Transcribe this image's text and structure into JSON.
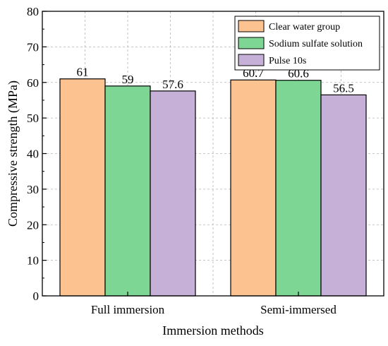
{
  "chart_data": {
    "type": "bar",
    "title": "",
    "xlabel": "Immersion methods",
    "ylabel": "Compressive strength (MPa)",
    "ylim": [
      0,
      80
    ],
    "yticks": [
      0,
      10,
      20,
      30,
      40,
      50,
      60,
      70,
      80
    ],
    "categories": [
      "Full immersion",
      "Semi-immersed"
    ],
    "series": [
      {
        "name": "Clear water group",
        "values": [
          61,
          60.7
        ],
        "value_labels": [
          "61",
          "60.7"
        ],
        "color": "#fcc28f"
      },
      {
        "name": "Sodium sulfate solution",
        "values": [
          59,
          60.6
        ],
        "value_labels": [
          "59",
          "60.6"
        ],
        "color": "#7ed694"
      },
      {
        "name": "Pulse 10s",
        "values": [
          57.6,
          56.5
        ],
        "value_labels": [
          "57.6",
          "56.5"
        ],
        "color": "#c6b0d7"
      }
    ],
    "grid": true,
    "legend_position": "top-right"
  }
}
